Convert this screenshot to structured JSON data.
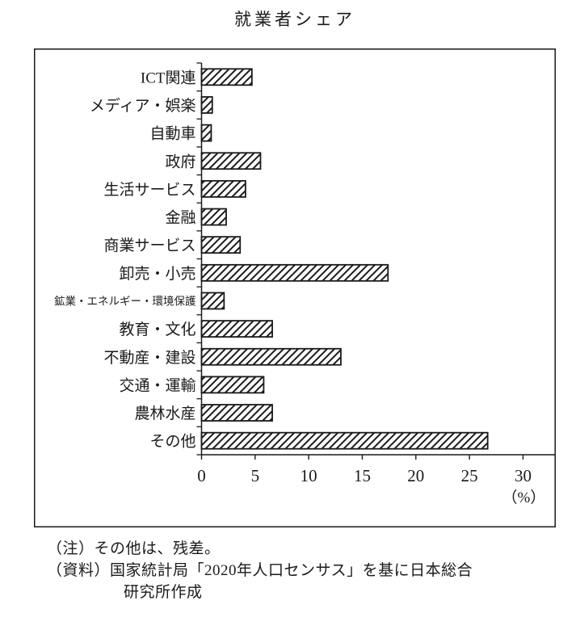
{
  "title": "就業者シェア",
  "chart_data": {
    "type": "bar",
    "orientation": "horizontal",
    "title": "就業者シェア",
    "categories": [
      "ICT関連",
      "メディア・娯楽",
      "自動車",
      "政府",
      "生活サービス",
      "金融",
      "商業サービス",
      "卸売・小売",
      "鉱業・エネルギー・環境保護",
      "教育・文化",
      "不動産・建設",
      "交通・運輸",
      "農林水産",
      "その他"
    ],
    "values": [
      4.7,
      1.0,
      0.9,
      5.5,
      4.1,
      2.3,
      3.6,
      17.4,
      2.1,
      6.6,
      13.0,
      5.8,
      6.6,
      26.7
    ],
    "xticks": [
      0,
      5,
      10,
      15,
      20,
      25,
      30
    ],
    "xlim": [
      0,
      33
    ],
    "unit_label": "（%）",
    "bar_style": "diagonal-hatch",
    "grid": false,
    "legend": false,
    "colors": {
      "ink": "#1a1a1a",
      "background": "#ffffff"
    }
  },
  "notes": {
    "note_line": "（注）その他は、残差。",
    "source_line1": "（資料）国家統計局「2020年人口センサス」を基に日本総合",
    "source_line2": "研究所作成"
  }
}
